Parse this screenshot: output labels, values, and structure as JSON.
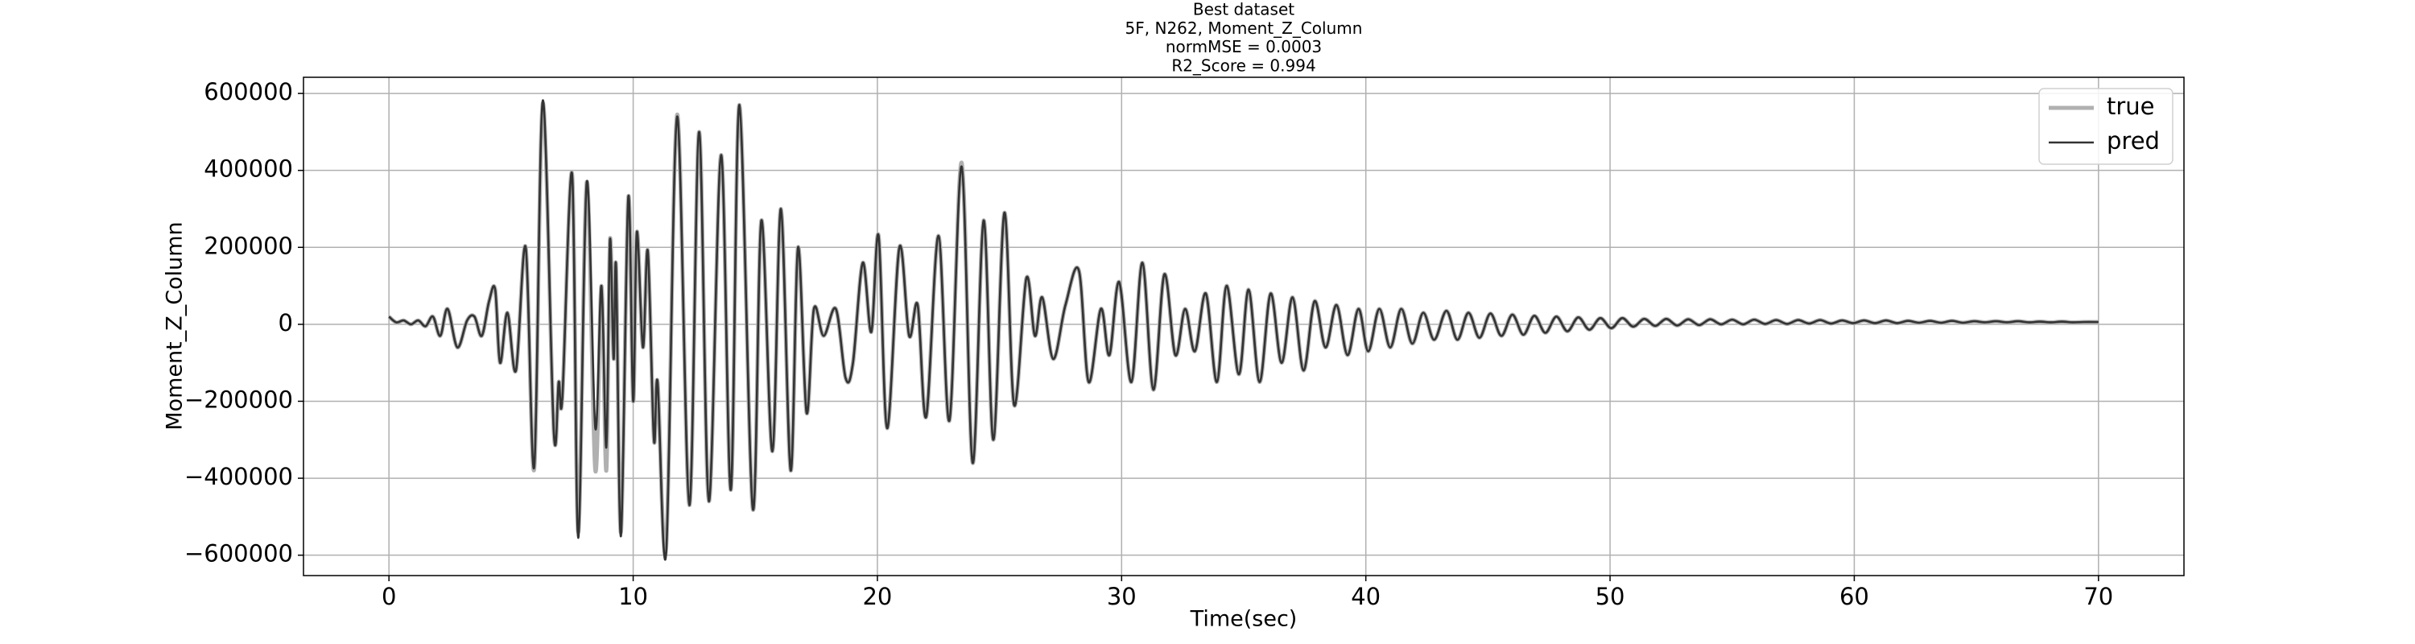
{
  "chart_data": {
    "type": "line",
    "title": [
      "Best dataset",
      "5F, N262, Moment_Z_Column",
      "normMSE = 0.0003",
      "R2_Score = 0.994"
    ],
    "xlabel": "Time(sec)",
    "ylabel": "Moment_Z_Column",
    "xlim": [
      -3.5,
      73.5
    ],
    "ylim": [
      -653000,
      642000
    ],
    "xticks": [
      0,
      10,
      20,
      30,
      40,
      50,
      60,
      70
    ],
    "yticks": [
      {
        "value": -600000,
        "label": "−600000"
      },
      {
        "value": -400000,
        "label": "−400000"
      },
      {
        "value": -200000,
        "label": "−200000"
      },
      0,
      200000,
      400000,
      600000
    ],
    "grid": true,
    "legend": "upper right",
    "x": [
      0,
      0.3,
      0.6,
      0.9,
      1.2,
      1.5,
      1.8,
      2.1,
      2.4,
      2.8,
      3.2,
      3.5,
      3.8,
      4.1,
      4.35,
      4.55,
      4.85,
      5.2,
      5.6,
      5.95,
      6.3,
      6.75,
      6.95,
      7.1,
      7.5,
      7.75,
      8.1,
      8.45,
      8.7,
      8.9,
      9.05,
      9.2,
      9.3,
      9.5,
      9.8,
      10.0,
      10.15,
      10.4,
      10.6,
      10.85,
      11.0,
      11.35,
      11.8,
      12.3,
      12.7,
      13.1,
      13.6,
      14.0,
      14.35,
      14.9,
      15.25,
      15.7,
      16.05,
      16.45,
      16.75,
      17.1,
      17.4,
      17.8,
      18.3,
      18.7,
      19.0,
      19.4,
      19.75,
      20.05,
      20.4,
      20.9,
      21.3,
      21.65,
      22.0,
      22.5,
      22.95,
      23.45,
      23.9,
      24.35,
      24.75,
      25.2,
      25.6,
      26.1,
      26.45,
      26.75,
      27.2,
      27.7,
      28.25,
      28.65,
      29.15,
      29.5,
      29.9,
      30.4,
      30.85,
      31.3,
      31.75,
      32.2,
      32.6,
      33.0,
      33.45,
      33.9,
      34.3,
      34.8,
      35.2,
      35.65,
      36.1,
      36.55,
      37.0,
      37.45,
      37.9,
      38.35,
      38.8,
      39.25,
      39.7,
      40.1,
      40.55,
      41.0,
      41.45,
      41.9,
      42.35,
      42.8,
      43.3,
      43.75,
      44.2,
      44.65,
      45.1,
      45.55,
      46.0,
      46.45,
      46.9,
      47.35,
      47.8,
      48.25,
      48.7,
      49.15,
      49.6,
      50.05,
      50.5,
      50.95,
      51.4,
      51.85,
      52.3,
      52.75,
      53.2,
      53.65,
      54.1,
      54.55,
      55.0,
      55.45,
      55.9,
      56.35,
      56.8,
      57.25,
      57.7,
      58.15,
      58.6,
      59.05,
      59.5,
      59.95,
      60.4,
      60.85,
      61.3,
      61.75,
      62.2,
      62.65,
      63.1,
      63.55,
      64.0,
      64.45,
      64.9,
      65.35,
      65.8,
      66.25,
      66.7,
      67.15,
      67.6,
      68.05,
      68.5,
      68.95,
      69.4,
      70.0
    ],
    "series": [
      {
        "name": "true",
        "color": "#b0b0b0",
        "values": [
          20000,
          5000,
          10000,
          0,
          10000,
          -5000,
          20000,
          -30000,
          40000,
          -60000,
          10000,
          20000,
          -30000,
          60000,
          90000,
          -100000,
          30000,
          -120000,
          200000,
          -375000,
          575000,
          -280000,
          -150000,
          -190000,
          390000,
          -540000,
          370000,
          -380000,
          100000,
          -380000,
          220000,
          -90000,
          150000,
          -540000,
          330000,
          -200000,
          240000,
          -60000,
          190000,
          -300000,
          -150000,
          -580000,
          545000,
          -470000,
          500000,
          -460000,
          440000,
          -430000,
          570000,
          -480000,
          270000,
          -330000,
          300000,
          -380000,
          200000,
          -230000,
          40000,
          -30000,
          40000,
          -140000,
          -100000,
          160000,
          -20000,
          230000,
          -270000,
          200000,
          -30000,
          50000,
          -240000,
          230000,
          -250000,
          420000,
          -360000,
          270000,
          -300000,
          290000,
          -210000,
          120000,
          -30000,
          70000,
          -90000,
          50000,
          140000,
          -150000,
          40000,
          -80000,
          110000,
          -150000,
          160000,
          -170000,
          130000,
          -80000,
          40000,
          -70000,
          80000,
          -150000,
          100000,
          -130000,
          90000,
          -150000,
          80000,
          -100000,
          70000,
          -120000,
          60000,
          -60000,
          50000,
          -80000,
          40000,
          -70000,
          40000,
          -60000,
          40000,
          -50000,
          30000,
          -40000,
          35000,
          -40000,
          30000,
          -35000,
          28000,
          -30000,
          25000,
          -27000,
          22000,
          -22000,
          20000,
          -18000,
          18000,
          -14000,
          16000,
          -10000,
          16000,
          -6000,
          14000,
          -4000,
          14000,
          -3000,
          13000,
          -2000,
          13000,
          0,
          12000,
          0,
          12000,
          1000,
          11000,
          1000,
          11000,
          2000,
          11000,
          2000,
          10000,
          3000,
          10000,
          3000,
          10000,
          3000,
          9000,
          4000,
          9000,
          4000,
          9000,
          4000,
          8000,
          5000,
          8000,
          5000,
          8000,
          5000,
          7000,
          5000,
          7000,
          5000,
          6000,
          6000
        ]
      },
      {
        "name": "pred",
        "color": "#333333",
        "values": [
          20000,
          5000,
          10000,
          0,
          10000,
          -5000,
          20000,
          -30000,
          40000,
          -60000,
          10000,
          20000,
          -30000,
          60000,
          90000,
          -100000,
          30000,
          -120000,
          200000,
          -370000,
          582000,
          -280000,
          -150000,
          -190000,
          390000,
          -555000,
          370000,
          -270000,
          100000,
          -320000,
          220000,
          -90000,
          150000,
          -550000,
          330000,
          -200000,
          240000,
          -60000,
          190000,
          -300000,
          -150000,
          -595000,
          540000,
          -470000,
          500000,
          -460000,
          440000,
          -430000,
          570000,
          -480000,
          270000,
          -330000,
          300000,
          -380000,
          200000,
          -230000,
          40000,
          -30000,
          40000,
          -140000,
          -100000,
          160000,
          -20000,
          230000,
          -270000,
          200000,
          -30000,
          50000,
          -240000,
          230000,
          -250000,
          410000,
          -360000,
          270000,
          -300000,
          290000,
          -210000,
          120000,
          -30000,
          70000,
          -90000,
          50000,
          140000,
          -150000,
          40000,
          -80000,
          110000,
          -150000,
          160000,
          -170000,
          130000,
          -80000,
          40000,
          -70000,
          80000,
          -150000,
          100000,
          -130000,
          90000,
          -150000,
          80000,
          -100000,
          70000,
          -120000,
          60000,
          -60000,
          50000,
          -80000,
          40000,
          -70000,
          40000,
          -60000,
          40000,
          -50000,
          30000,
          -40000,
          35000,
          -40000,
          30000,
          -35000,
          28000,
          -30000,
          25000,
          -27000,
          22000,
          -22000,
          20000,
          -18000,
          18000,
          -14000,
          16000,
          -10000,
          16000,
          -6000,
          14000,
          -4000,
          14000,
          -3000,
          13000,
          -2000,
          13000,
          0,
          12000,
          0,
          12000,
          1000,
          11000,
          1000,
          11000,
          2000,
          11000,
          2000,
          10000,
          3000,
          10000,
          3000,
          10000,
          3000,
          9000,
          4000,
          9000,
          4000,
          9000,
          4000,
          8000,
          5000,
          8000,
          5000,
          8000,
          5000,
          7000,
          5000,
          7000,
          5000,
          6000,
          6000
        ]
      }
    ]
  }
}
